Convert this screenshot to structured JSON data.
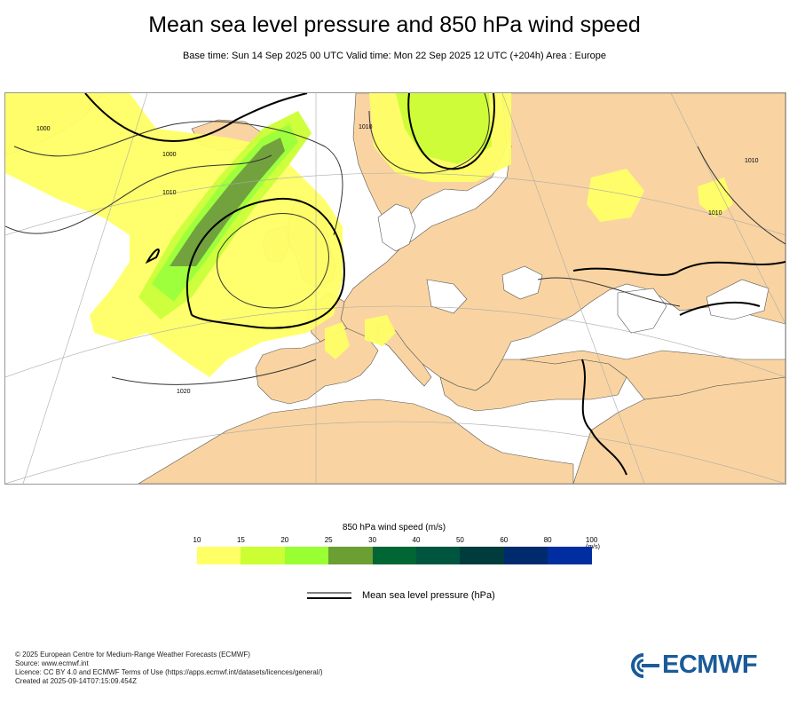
{
  "header": {
    "title": "Mean sea level pressure and 850 hPa wind speed",
    "subtitle": "Base time: Sun 14 Sep 2025 00 UTC Valid time: Mon 22 Sep 2025 12 UTC (+204h) Area : Europe"
  },
  "map": {
    "isobar_labels": [
      "1010",
      "1000",
      "1020",
      "1010",
      "1010",
      "1000",
      "1010"
    ]
  },
  "legend": {
    "title": "850 hPa wind speed (m/s)",
    "ticks": [
      "10",
      "15",
      "20",
      "25",
      "30",
      "40",
      "50",
      "60",
      "80",
      "100"
    ],
    "unit": "(m/s)",
    "colors": [
      "#ffff66",
      "#ccff33",
      "#99ff33",
      "#6b9e33",
      "#006633",
      "#00553f",
      "#003c3c",
      "#002a6e",
      "#002ea0"
    ],
    "pressure_label": "Mean sea level pressure (hPa)"
  },
  "footer": {
    "line1": "© 2025 European Centre for Medium-Range Weather Forecasts (ECMWF)",
    "line2": "Source: www.ecmwf.int",
    "line3": "Licence: CC BY 4.0 and ECMWF Terms of Use (https://apps.ecmwf.int/datasets/licences/general/)",
    "line4": "Created at 2025-09-14T07:15:09.454Z"
  },
  "logo": {
    "text": "ECMWF",
    "color": "#1a5b99"
  }
}
